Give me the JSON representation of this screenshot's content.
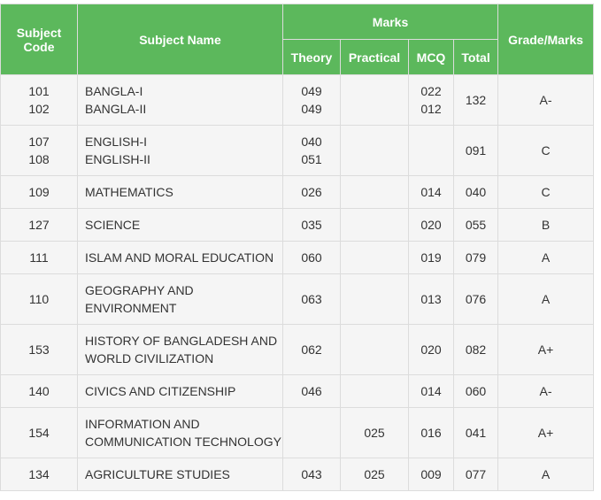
{
  "headers": {
    "subject_code": "Subject Code",
    "subject_name": "Subject Name",
    "marks": "Marks",
    "theory": "Theory",
    "practical": "Practical",
    "mcq": "MCQ",
    "total": "Total",
    "grade": "Grade/Marks"
  },
  "rows": [
    {
      "code": [
        "101",
        "102"
      ],
      "name": [
        "BANGLA-I",
        "BANGLA-II"
      ],
      "theory": [
        "049",
        "049"
      ],
      "practical": [],
      "mcq": [
        "022",
        "012"
      ],
      "total": "132",
      "grade": "A-"
    },
    {
      "code": [
        "107",
        "108"
      ],
      "name": [
        "ENGLISH-I",
        "ENGLISH-II"
      ],
      "theory": [
        "040",
        "051"
      ],
      "practical": [],
      "mcq": [],
      "total": "091",
      "grade": "C"
    },
    {
      "code": [
        "109"
      ],
      "name": [
        "MATHEMATICS"
      ],
      "theory": [
        "026"
      ],
      "practical": [],
      "mcq": [
        "014"
      ],
      "total": "040",
      "grade": "C"
    },
    {
      "code": [
        "127"
      ],
      "name": [
        "SCIENCE"
      ],
      "theory": [
        "035"
      ],
      "practical": [],
      "mcq": [
        "020"
      ],
      "total": "055",
      "grade": "B"
    },
    {
      "code": [
        "111"
      ],
      "name": [
        "ISLAM AND MORAL EDUCATION"
      ],
      "theory": [
        "060"
      ],
      "practical": [],
      "mcq": [
        "019"
      ],
      "total": "079",
      "grade": "A"
    },
    {
      "code": [
        "110"
      ],
      "name": [
        "GEOGRAPHY AND",
        "ENVIRONMENT"
      ],
      "theory": [
        "063"
      ],
      "practical": [],
      "mcq": [
        "013"
      ],
      "total": "076",
      "grade": "A"
    },
    {
      "code": [
        "153"
      ],
      "name": [
        "HISTORY OF BANGLADESH AND",
        "WORLD CIVILIZATION"
      ],
      "theory": [
        "062"
      ],
      "practical": [],
      "mcq": [
        "020"
      ],
      "total": "082",
      "grade": "A+"
    },
    {
      "code": [
        "140"
      ],
      "name": [
        "CIVICS AND CITIZENSHIP"
      ],
      "theory": [
        "046"
      ],
      "practical": [],
      "mcq": [
        "014"
      ],
      "total": "060",
      "grade": "A-"
    },
    {
      "code": [
        "154"
      ],
      "name": [
        "INFORMATION AND",
        "COMMUNICATION TECHNOLOGY"
      ],
      "theory": [],
      "practical": [
        "025"
      ],
      "mcq": [
        "016"
      ],
      "total": "041",
      "grade": "A+"
    },
    {
      "code": [
        "134"
      ],
      "name": [
        "AGRICULTURE STUDIES"
      ],
      "theory": [
        "043"
      ],
      "practical": [
        "025"
      ],
      "mcq": [
        "009"
      ],
      "total": "077",
      "grade": "A"
    }
  ]
}
